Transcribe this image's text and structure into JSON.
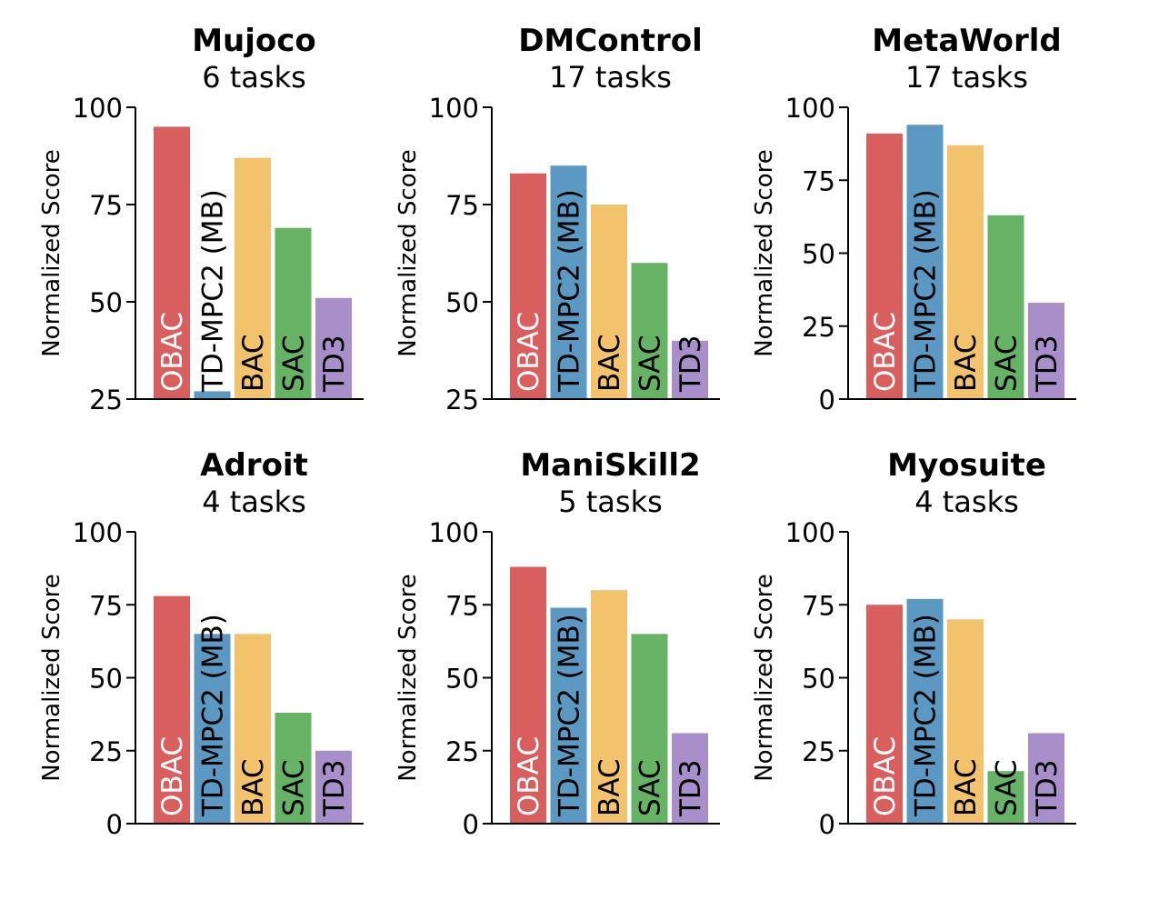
{
  "colors": {
    "OBAC": "#d95f5f",
    "TD-MPC2 (MB)": "#5b98c2",
    "BAC": "#f2c26c",
    "SAC": "#66b366",
    "TD3": "#a98fc9",
    "axis": "#000000"
  },
  "ylabel": "Normalized Score",
  "chart_data": [
    {
      "type": "bar",
      "title": "Mujoco",
      "subtitle": "6 tasks",
      "ylabel": "Normalized Score",
      "categories": [
        "OBAC",
        "TD-MPC2 (MB)",
        "BAC",
        "SAC",
        "TD3"
      ],
      "values": [
        95,
        27,
        87,
        69,
        51
      ],
      "ylim": [
        25,
        100
      ],
      "yticks": [
        25,
        50,
        75,
        100
      ]
    },
    {
      "type": "bar",
      "title": "DMControl",
      "subtitle": "17 tasks",
      "ylabel": "Normalized Score",
      "categories": [
        "OBAC",
        "TD-MPC2 (MB)",
        "BAC",
        "SAC",
        "TD3"
      ],
      "values": [
        83,
        85,
        75,
        60,
        40
      ],
      "ylim": [
        25,
        100
      ],
      "yticks": [
        25,
        50,
        75,
        100
      ]
    },
    {
      "type": "bar",
      "title": "MetaWorld",
      "subtitle": "17 tasks",
      "ylabel": "Normalized Score",
      "categories": [
        "OBAC",
        "TD-MPC2 (MB)",
        "BAC",
        "SAC",
        "TD3"
      ],
      "values": [
        91,
        94,
        87,
        63,
        33
      ],
      "ylim": [
        0,
        100
      ],
      "yticks": [
        0,
        25,
        50,
        75,
        100
      ]
    },
    {
      "type": "bar",
      "title": "Adroit",
      "subtitle": "4 tasks",
      "ylabel": "Normalized Score",
      "categories": [
        "OBAC",
        "TD-MPC2 (MB)",
        "BAC",
        "SAC",
        "TD3"
      ],
      "values": [
        78,
        65,
        65,
        38,
        25
      ],
      "ylim": [
        0,
        100
      ],
      "yticks": [
        0,
        25,
        50,
        75,
        100
      ]
    },
    {
      "type": "bar",
      "title": "ManiSkill2",
      "subtitle": "5 tasks",
      "ylabel": "Normalized Score",
      "categories": [
        "OBAC",
        "TD-MPC2 (MB)",
        "BAC",
        "SAC",
        "TD3"
      ],
      "values": [
        88,
        74,
        80,
        65,
        31
      ],
      "ylim": [
        0,
        100
      ],
      "yticks": [
        0,
        25,
        50,
        75,
        100
      ]
    },
    {
      "type": "bar",
      "title": "Myosuite",
      "subtitle": "4 tasks",
      "ylabel": "Normalized Score",
      "categories": [
        "OBAC",
        "TD-MPC2 (MB)",
        "BAC",
        "SAC",
        "TD3"
      ],
      "values": [
        75,
        77,
        70,
        18,
        31
      ],
      "ylim": [
        0,
        100
      ],
      "yticks": [
        0,
        25,
        50,
        75,
        100
      ]
    }
  ]
}
